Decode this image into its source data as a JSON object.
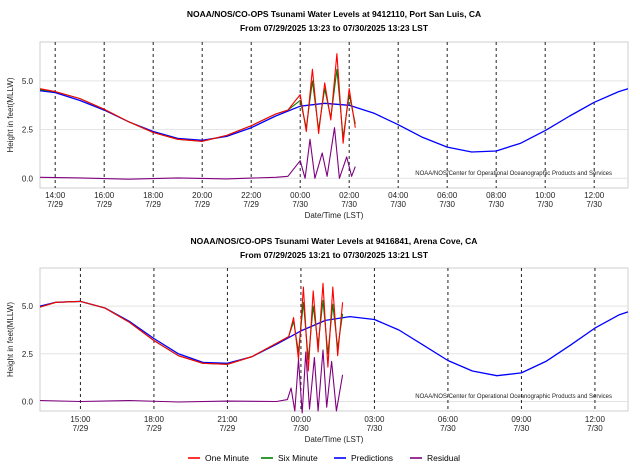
{
  "legend": [
    {
      "label": "One Minute",
      "color": "#ff0000"
    },
    {
      "label": "Six Minute",
      "color": "#008000"
    },
    {
      "label": "Predictions",
      "color": "#0000ff"
    },
    {
      "label": "Residual",
      "color": "#800080"
    }
  ],
  "chart_data": [
    {
      "type": "line",
      "title": "NOAA/NOS/CO-OPS Tsunami Water Levels at 9412110, Port San Luis, CA",
      "subtitle": "From 07/29/2025 13:23 to 07/30/2025 13:23 LST",
      "xlabel": "Date/Time (LST)",
      "ylabel": "Height in feet(MLLW)",
      "credit": "NOAA/NOS/Center for Operational Oceanographic Products and Services",
      "x_start_hours": 13.38,
      "x_end_hours": 37.38,
      "ylim": [
        -0.5,
        7.0
      ],
      "y_ticks": [
        {
          "v": 0.0,
          "label": "0.0"
        },
        {
          "v": 2.5,
          "label": "2.5"
        },
        {
          "v": 5.0,
          "label": "5.0"
        }
      ],
      "x_ticks": [
        {
          "h": 14,
          "time": "14:00",
          "date": "7/29"
        },
        {
          "h": 16,
          "time": "16:00",
          "date": "7/29"
        },
        {
          "h": 18,
          "time": "18:00",
          "date": "7/29"
        },
        {
          "h": 20,
          "time": "20:00",
          "date": "7/29"
        },
        {
          "h": 22,
          "time": "22:00",
          "date": "7/29"
        },
        {
          "h": 24,
          "time": "00:00",
          "date": "7/30"
        },
        {
          "h": 26,
          "time": "02:00",
          "date": "7/30"
        },
        {
          "h": 28,
          "time": "04:00",
          "date": "7/30"
        },
        {
          "h": 30,
          "time": "06:00",
          "date": "7/30"
        },
        {
          "h": 32,
          "time": "08:00",
          "date": "7/30"
        },
        {
          "h": 34,
          "time": "10:00",
          "date": "7/30"
        },
        {
          "h": 36,
          "time": "12:00",
          "date": "7/30"
        }
      ],
      "grid": true,
      "series": [
        {
          "name": "Predictions",
          "color": "#0000ff",
          "points": [
            [
              13.38,
              4.5
            ],
            [
              14,
              4.4
            ],
            [
              15,
              4.0
            ],
            [
              16,
              3.5
            ],
            [
              17,
              2.9
            ],
            [
              18,
              2.4
            ],
            [
              19,
              2.05
            ],
            [
              20,
              1.95
            ],
            [
              21,
              2.15
            ],
            [
              22,
              2.6
            ],
            [
              23,
              3.2
            ],
            [
              24,
              3.7
            ],
            [
              25,
              3.85
            ],
            [
              26,
              3.75
            ],
            [
              27,
              3.35
            ],
            [
              28,
              2.75
            ],
            [
              29,
              2.1
            ],
            [
              30,
              1.6
            ],
            [
              31,
              1.35
            ],
            [
              32,
              1.4
            ],
            [
              33,
              1.8
            ],
            [
              34,
              2.45
            ],
            [
              35,
              3.2
            ],
            [
              36,
              3.9
            ],
            [
              37,
              4.45
            ],
            [
              37.38,
              4.6
            ]
          ]
        },
        {
          "name": "One Minute",
          "color": "#ff0000",
          "points": [
            [
              13.38,
              4.6
            ],
            [
              14,
              4.45
            ],
            [
              15,
              4.1
            ],
            [
              16,
              3.55
            ],
            [
              17,
              2.9
            ],
            [
              18,
              2.35
            ],
            [
              19,
              2.0
            ],
            [
              20,
              1.9
            ],
            [
              21,
              2.2
            ],
            [
              22,
              2.7
            ],
            [
              23,
              3.3
            ],
            [
              23.5,
              3.5
            ],
            [
              24,
              4.3
            ],
            [
              24.25,
              2.4
            ],
            [
              24.5,
              5.6
            ],
            [
              24.75,
              2.3
            ],
            [
              25,
              4.9
            ],
            [
              25.25,
              3.0
            ],
            [
              25.5,
              6.4
            ],
            [
              25.75,
              1.8
            ],
            [
              26,
              4.6
            ],
            [
              26.25,
              2.6
            ]
          ]
        },
        {
          "name": "Six Minute",
          "color": "#008000",
          "points": [
            [
              13.38,
              4.55
            ],
            [
              14,
              4.45
            ],
            [
              15,
              4.1
            ],
            [
              16,
              3.55
            ],
            [
              17,
              2.9
            ],
            [
              18,
              2.35
            ],
            [
              19,
              2.0
            ],
            [
              20,
              1.9
            ],
            [
              21,
              2.2
            ],
            [
              22,
              2.7
            ],
            [
              23,
              3.3
            ],
            [
              23.5,
              3.5
            ],
            [
              24,
              4.0
            ],
            [
              24.25,
              2.6
            ],
            [
              24.5,
              5.0
            ],
            [
              24.75,
              2.5
            ],
            [
              25,
              4.6
            ],
            [
              25.25,
              3.1
            ],
            [
              25.5,
              5.6
            ],
            [
              25.75,
              2.1
            ],
            [
              26,
              4.3
            ],
            [
              26.25,
              2.8
            ]
          ]
        },
        {
          "name": "Residual",
          "color": "#800080",
          "points": [
            [
              13.38,
              0.05
            ],
            [
              15,
              0.02
            ],
            [
              17,
              -0.05
            ],
            [
              19,
              0.02
            ],
            [
              21,
              -0.03
            ],
            [
              23,
              0.05
            ],
            [
              23.5,
              0.1
            ],
            [
              24,
              0.9
            ],
            [
              24.2,
              0.0
            ],
            [
              24.4,
              2.0
            ],
            [
              24.6,
              0.0
            ],
            [
              24.9,
              1.3
            ],
            [
              25.1,
              0.1
            ],
            [
              25.4,
              2.6
            ],
            [
              25.6,
              0.0
            ],
            [
              25.9,
              1.1
            ],
            [
              26.1,
              0.1
            ],
            [
              26.25,
              0.6
            ]
          ]
        }
      ]
    },
    {
      "type": "line",
      "title": "NOAA/NOS/CO-OPS Tsunami Water Levels at 9416841, Arena Cove, CA",
      "subtitle": "From 07/29/2025 13:21 to 07/30/2025 13:21 LST",
      "xlabel": "Date/Time (LST)",
      "ylabel": "Height in feet(MLLW)",
      "credit": "NOAA/NOS/Center for Operational Oceanographic Products and Services",
      "x_start_hours": 13.35,
      "x_end_hours": 37.35,
      "ylim": [
        -0.5,
        7.0
      ],
      "y_ticks": [
        {
          "v": 0.0,
          "label": "0.0"
        },
        {
          "v": 2.5,
          "label": "2.5"
        },
        {
          "v": 5.0,
          "label": "5.0"
        }
      ],
      "x_ticks": [
        {
          "h": 15,
          "time": "15:00",
          "date": "7/29"
        },
        {
          "h": 18,
          "time": "18:00",
          "date": "7/29"
        },
        {
          "h": 21,
          "time": "21:00",
          "date": "7/29"
        },
        {
          "h": 24,
          "time": "00:00",
          "date": "7/30"
        },
        {
          "h": 27,
          "time": "03:00",
          "date": "7/30"
        },
        {
          "h": 30,
          "time": "06:00",
          "date": "7/30"
        },
        {
          "h": 33,
          "time": "09:00",
          "date": "7/30"
        },
        {
          "h": 36,
          "time": "12:00",
          "date": "7/30"
        }
      ],
      "grid": true,
      "series": [
        {
          "name": "Predictions",
          "color": "#0000ff",
          "points": [
            [
              13.35,
              5.0
            ],
            [
              14,
              5.2
            ],
            [
              15,
              5.25
            ],
            [
              16,
              4.9
            ],
            [
              17,
              4.2
            ],
            [
              18,
              3.3
            ],
            [
              19,
              2.5
            ],
            [
              20,
              2.05
            ],
            [
              21,
              2.0
            ],
            [
              22,
              2.35
            ],
            [
              23,
              3.0
            ],
            [
              24,
              3.7
            ],
            [
              25,
              4.25
            ],
            [
              26,
              4.45
            ],
            [
              27,
              4.3
            ],
            [
              28,
              3.75
            ],
            [
              29,
              2.95
            ],
            [
              30,
              2.15
            ],
            [
              31,
              1.6
            ],
            [
              32,
              1.35
            ],
            [
              33,
              1.5
            ],
            [
              34,
              2.1
            ],
            [
              35,
              2.95
            ],
            [
              36,
              3.85
            ],
            [
              37,
              4.55
            ],
            [
              37.35,
              4.7
            ]
          ]
        },
        {
          "name": "One Minute",
          "color": "#ff0000",
          "points": [
            [
              13.35,
              4.95
            ],
            [
              14,
              5.2
            ],
            [
              15,
              5.25
            ],
            [
              16,
              4.9
            ],
            [
              17,
              4.15
            ],
            [
              18,
              3.2
            ],
            [
              19,
              2.4
            ],
            [
              20,
              2.0
            ],
            [
              21,
              1.95
            ],
            [
              22,
              2.35
            ],
            [
              23,
              3.05
            ],
            [
              23.5,
              3.4
            ],
            [
              23.7,
              4.4
            ],
            [
              23.9,
              2.2
            ],
            [
              24.1,
              6.0
            ],
            [
              24.3,
              1.6
            ],
            [
              24.5,
              5.8
            ],
            [
              24.7,
              2.6
            ],
            [
              24.9,
              6.2
            ],
            [
              25.1,
              1.8
            ],
            [
              25.3,
              6.0
            ],
            [
              25.5,
              2.4
            ],
            [
              25.7,
              5.2
            ]
          ]
        },
        {
          "name": "Six Minute",
          "color": "#008000",
          "points": [
            [
              13.35,
              4.95
            ],
            [
              14,
              5.2
            ],
            [
              15,
              5.25
            ],
            [
              16,
              4.9
            ],
            [
              17,
              4.15
            ],
            [
              18,
              3.2
            ],
            [
              19,
              2.4
            ],
            [
              20,
              2.0
            ],
            [
              21,
              1.95
            ],
            [
              22,
              2.35
            ],
            [
              23,
              3.05
            ],
            [
              23.5,
              3.4
            ],
            [
              23.7,
              4.2
            ],
            [
              23.9,
              2.6
            ],
            [
              24.1,
              5.2
            ],
            [
              24.3,
              2.2
            ],
            [
              24.5,
              5.0
            ],
            [
              24.7,
              3.0
            ],
            [
              24.9,
              5.3
            ],
            [
              25.1,
              2.5
            ],
            [
              25.3,
              5.1
            ],
            [
              25.5,
              2.8
            ],
            [
              25.7,
              4.6
            ]
          ]
        },
        {
          "name": "Residual",
          "color": "#800080",
          "points": [
            [
              13.35,
              0.05
            ],
            [
              15,
              0.0
            ],
            [
              17,
              0.05
            ],
            [
              19,
              -0.03
            ],
            [
              21,
              0.02
            ],
            [
              23,
              0.0
            ],
            [
              23.45,
              0.1
            ],
            [
              23.6,
              0.7
            ],
            [
              23.75,
              -0.5
            ],
            [
              23.9,
              2.2
            ],
            [
              24.05,
              -0.6
            ],
            [
              24.2,
              2.6
            ],
            [
              24.35,
              -0.4
            ],
            [
              24.55,
              2.3
            ],
            [
              24.7,
              -0.5
            ],
            [
              24.9,
              2.7
            ],
            [
              25.05,
              -0.3
            ],
            [
              25.25,
              2.1
            ],
            [
              25.45,
              -0.5
            ],
            [
              25.7,
              1.4
            ]
          ]
        }
      ]
    }
  ]
}
